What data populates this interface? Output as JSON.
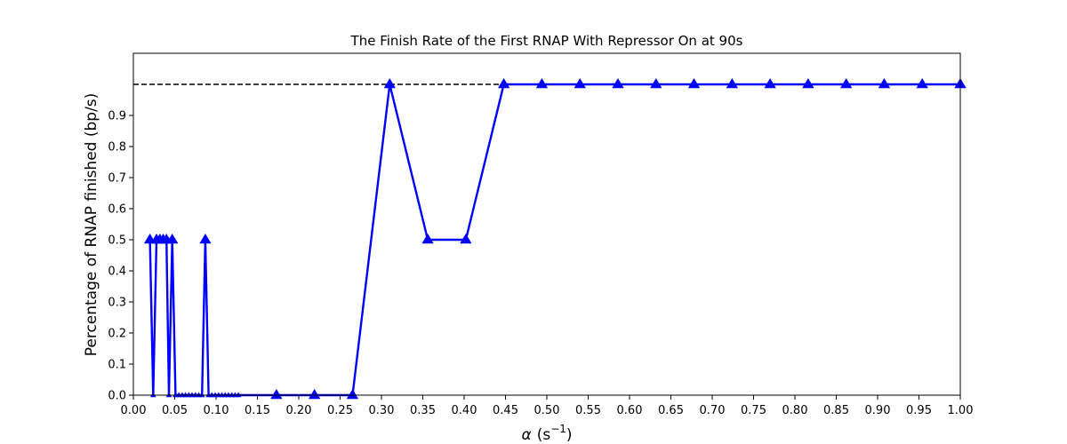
{
  "chart_data": {
    "type": "line",
    "title": "The Finish Rate of the First RNAP With Repressor On at 90s",
    "xlabel_symbol": "α",
    "xlabel_unit": "(s",
    "xlabel_exp": "−1",
    "xlabel_close": ")",
    "ylabel": "Percentage of RNAP finished (bp/s)",
    "xlim": [
      0.0,
      1.0
    ],
    "ylim": [
      0.0,
      1.1
    ],
    "xticks": [
      0.0,
      0.05,
      0.1,
      0.15,
      0.2,
      0.25,
      0.3,
      0.35,
      0.4,
      0.45,
      0.5,
      0.55,
      0.6,
      0.65,
      0.7,
      0.75,
      0.8,
      0.85,
      0.9,
      0.95,
      1.0
    ],
    "xtick_labels": [
      "0.00",
      "0.05",
      "0.10",
      "0.15",
      "0.20",
      "0.25",
      "0.30",
      "0.35",
      "0.40",
      "0.45",
      "0.50",
      "0.55",
      "0.60",
      "0.65",
      "0.70",
      "0.75",
      "0.80",
      "0.85",
      "0.90",
      "0.95",
      "1.00"
    ],
    "yticks": [
      0.0,
      0.1,
      0.2,
      0.3,
      0.4,
      0.5,
      0.6,
      0.7,
      0.8,
      0.9
    ],
    "ytick_labels": [
      "0.0",
      "0.1",
      "0.2",
      "0.3",
      "0.4",
      "0.5",
      "0.6",
      "0.7",
      "0.8",
      "0.9"
    ],
    "reference_line": {
      "y": 1.0,
      "style": "dashed",
      "color": "#000000"
    },
    "series_color": "#0000ff",
    "series": [
      {
        "x": [
          0.02,
          0.024,
          0.028,
          0.032,
          0.036,
          0.04,
          0.043,
          0.047,
          0.051,
          0.055,
          0.059,
          0.063,
          0.067,
          0.071,
          0.075,
          0.079,
          0.083,
          0.087,
          0.091,
          0.095,
          0.099,
          0.103,
          0.107,
          0.111,
          0.115,
          0.119,
          0.123,
          0.127,
          0.173,
          0.219,
          0.265,
          0.31,
          0.356,
          0.402,
          0.448,
          0.494,
          0.54,
          0.586,
          0.632,
          0.678,
          0.724,
          0.77,
          0.816,
          0.862,
          0.908,
          0.954,
          1.0
        ],
        "y": [
          0.5,
          0.0,
          0.5,
          0.5,
          0.5,
          0.5,
          0.0,
          0.5,
          0.0,
          0.0,
          0.0,
          0.0,
          0.0,
          0.0,
          0.0,
          0.0,
          0.0,
          0.5,
          0.0,
          0.0,
          0.0,
          0.0,
          0.0,
          0.0,
          0.0,
          0.0,
          0.0,
          0.0,
          0.0,
          0.0,
          0.0,
          1.0,
          0.5,
          0.5,
          1.0,
          1.0,
          1.0,
          1.0,
          1.0,
          1.0,
          1.0,
          1.0,
          1.0,
          1.0,
          1.0,
          1.0,
          1.0
        ]
      }
    ]
  }
}
